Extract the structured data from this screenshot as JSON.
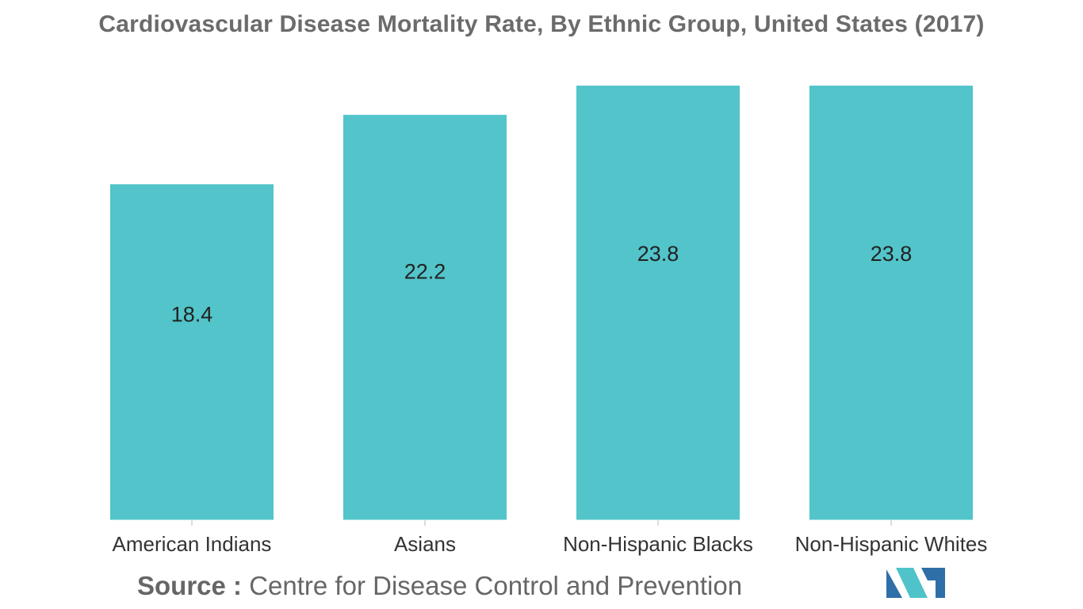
{
  "chart_data": {
    "type": "bar",
    "title": "Cardiovascular Disease Mortality Rate, By Ethnic Group, United States (2017)",
    "categories": [
      "American Indians",
      "Asians",
      "Non-Hispanic Blacks",
      "Non-Hispanic Whites"
    ],
    "values": [
      18.4,
      22.2,
      23.8,
      23.8
    ],
    "value_labels": [
      "18.4",
      "22.2",
      "23.8",
      "23.8"
    ],
    "xlabel": "",
    "ylabel": "",
    "grid": false,
    "legend": "none",
    "bar_color": "#52C4CA"
  },
  "source": {
    "label": "Source :",
    "text": "Centre for Disease Control and Prevention"
  },
  "brand": {
    "logo_icon": "mordor-intelligence-logo-icon",
    "logo_colors": [
      "#2F6FA8",
      "#4FC3C9"
    ]
  }
}
